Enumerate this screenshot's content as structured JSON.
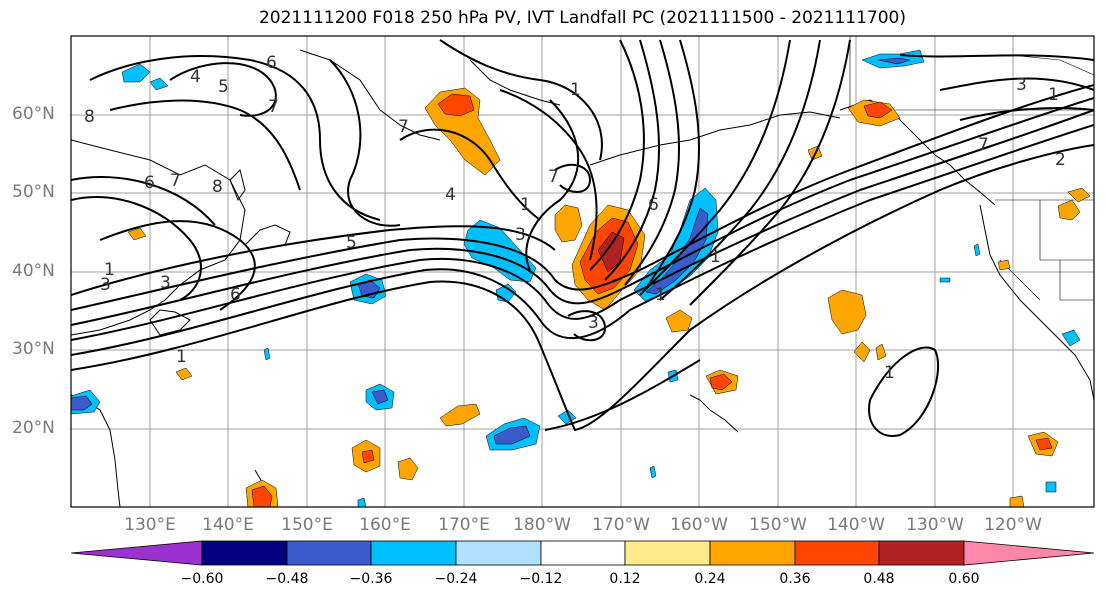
{
  "title": "2021111200 F018 250 hPa PV, IVT Landfall PC (2021111500 - 2021111700)",
  "lat_labels": [
    "60°N",
    "50°N",
    "40°N",
    "30°N",
    "20°N"
  ],
  "lon_labels": [
    "130°E",
    "140°E",
    "150°E",
    "160°E",
    "170°E",
    "180°W",
    "170°W",
    "160°W",
    "150°W",
    "140°W",
    "130°W",
    "120°W"
  ],
  "contour_labels": [
    "1",
    "1",
    "1",
    "1",
    "1",
    "1",
    "1",
    "1",
    "2",
    "3",
    "3",
    "3",
    "3",
    "3",
    "4",
    "4",
    "5",
    "5",
    "6",
    "6",
    "6",
    "6",
    "7",
    "7",
    "7",
    "7",
    "7",
    "8",
    "8"
  ],
  "colorbar": {
    "ticks": [
      "−0.60",
      "−0.48",
      "−0.36",
      "−0.24",
      "−0.12",
      "0.12",
      "0.24",
      "0.36",
      "0.48",
      "0.60"
    ],
    "colors": [
      "#9b32d0",
      "#000080",
      "#3a5bcc",
      "#00bfff",
      "#b0e2ff",
      "#ffffff",
      "#ffe98a",
      "#ffa500",
      "#ff4500",
      "#b22222",
      "#ff88aa"
    ]
  },
  "field_colors": {
    "neg_strong": "#3a5bcc",
    "neg_mid": "#00bfff",
    "neg_weak": "#b0e2ff",
    "pos_weak": "#ffe98a",
    "pos_mid": "#ffa500",
    "pos_strong": "#ff4500",
    "pos_max": "#b22222"
  }
}
